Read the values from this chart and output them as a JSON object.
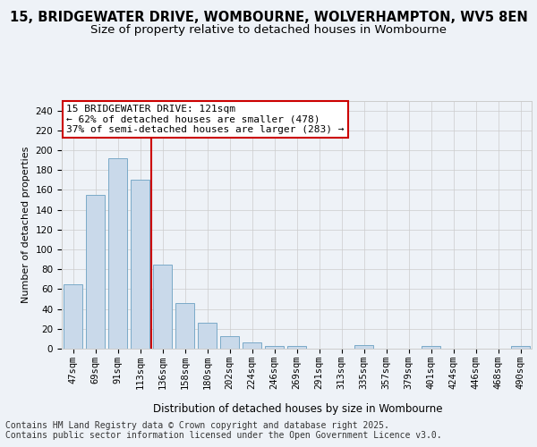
{
  "title": "15, BRIDGEWATER DRIVE, WOMBOURNE, WOLVERHAMPTON, WV5 8EN",
  "subtitle": "Size of property relative to detached houses in Wombourne",
  "xlabel": "Distribution of detached houses by size in Wombourne",
  "ylabel": "Number of detached properties",
  "categories": [
    "47sqm",
    "69sqm",
    "91sqm",
    "113sqm",
    "136sqm",
    "158sqm",
    "180sqm",
    "202sqm",
    "224sqm",
    "246sqm",
    "269sqm",
    "291sqm",
    "313sqm",
    "335sqm",
    "357sqm",
    "379sqm",
    "401sqm",
    "424sqm",
    "446sqm",
    "468sqm",
    "490sqm"
  ],
  "values": [
    65,
    155,
    192,
    170,
    85,
    46,
    26,
    13,
    6,
    3,
    3,
    0,
    0,
    4,
    0,
    0,
    3,
    0,
    0,
    0,
    3
  ],
  "bar_color": "#c9d9ea",
  "bar_edge_color": "#7aaac8",
  "grid_color": "#cccccc",
  "bg_color": "#eef2f7",
  "vline_x_index": 3.5,
  "vline_color": "#cc0000",
  "annotation_title": "15 BRIDGEWATER DRIVE: 121sqm",
  "annotation_line1": "← 62% of detached houses are smaller (478)",
  "annotation_line2": "37% of semi-detached houses are larger (283) →",
  "annotation_box_color": "#ffffff",
  "annotation_box_edge": "#cc0000",
  "footer1": "Contains HM Land Registry data © Crown copyright and database right 2025.",
  "footer2": "Contains public sector information licensed under the Open Government Licence v3.0.",
  "ylim": [
    0,
    250
  ],
  "yticks": [
    0,
    20,
    40,
    60,
    80,
    100,
    120,
    140,
    160,
    180,
    200,
    220,
    240
  ],
  "title_fontsize": 10.5,
  "subtitle_fontsize": 9.5,
  "xlabel_fontsize": 8.5,
  "ylabel_fontsize": 8,
  "tick_fontsize": 7.5,
  "footer_fontsize": 7,
  "annotation_fontsize": 8
}
